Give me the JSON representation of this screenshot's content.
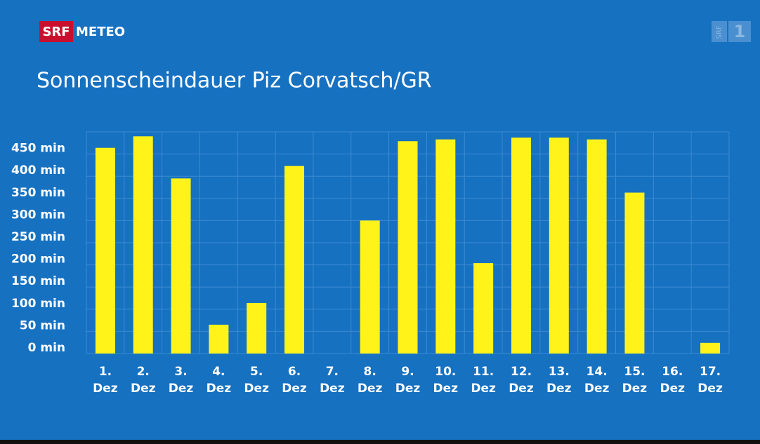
{
  "logo": {
    "brand": "SRF",
    "product": "METEO",
    "channel_brand": "SRF",
    "channel_number": "1"
  },
  "chart_data": {
    "type": "bar",
    "title": "Sonnenscheindauer Piz Corvatsch/GR",
    "categories": [
      "1. Dez",
      "2. Dez",
      "3. Dez",
      "4. Dez",
      "5. Dez",
      "6. Dez",
      "7. Dez",
      "8. Dez",
      "9. Dez",
      "10. Dez",
      "11. Dez",
      "12. Dez",
      "13. Dez",
      "14. Dez",
      "15. Dez",
      "16. Dez",
      "17. Dez"
    ],
    "values": [
      464,
      490,
      395,
      65,
      114,
      423,
      0,
      300,
      479,
      483,
      204,
      487,
      487,
      483,
      363,
      0,
      24
    ],
    "color": "#fff31a",
    "ylim": [
      0,
      500
    ],
    "yticks": [
      {
        "value": 0,
        "label": "0 min"
      },
      {
        "value": 50,
        "label": "50 min"
      },
      {
        "value": 100,
        "label": "100 min"
      },
      {
        "value": 150,
        "label": "150 min"
      },
      {
        "value": 200,
        "label": "200 min"
      },
      {
        "value": 250,
        "label": "250 min"
      },
      {
        "value": 300,
        "label": "300 min"
      },
      {
        "value": 350,
        "label": "350 min"
      },
      {
        "value": 400,
        "label": "400 min"
      },
      {
        "value": 450,
        "label": "450 min"
      }
    ],
    "grid": true
  }
}
